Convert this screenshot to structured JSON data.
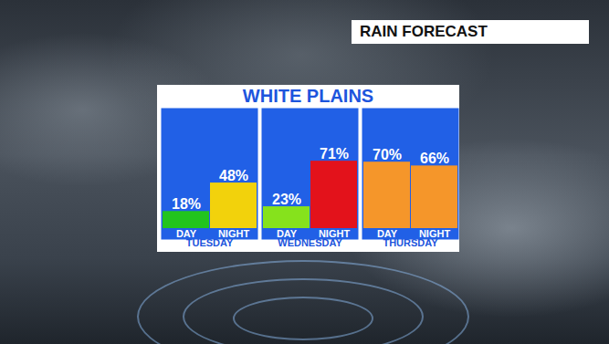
{
  "chart_data": {
    "type": "bar",
    "title": "WHITE PLAINS",
    "subtitle": "RAIN FORECAST",
    "groups": [
      "TUESDAY",
      "TUESDAY",
      "WEDNESDAY",
      "WEDNESDAY",
      "THURSDAY",
      "THURSDAY"
    ],
    "categories": [
      "DAY",
      "NIGHT",
      "DAY",
      "NIGHT",
      "DAY",
      "NIGHT"
    ],
    "values": [
      18,
      48,
      23,
      71,
      70,
      66
    ],
    "value_labels": [
      "18%",
      "48%",
      "23%",
      "71%",
      "70%",
      "66%"
    ],
    "colors": [
      "#22c41d",
      "#f2d20c",
      "#86e21c",
      "#e3121b",
      "#f5962a",
      "#f5962a"
    ],
    "ylim": [
      0,
      100
    ],
    "yticks": [],
    "data_labels": true,
    "tick_labels": "x"
  }
}
